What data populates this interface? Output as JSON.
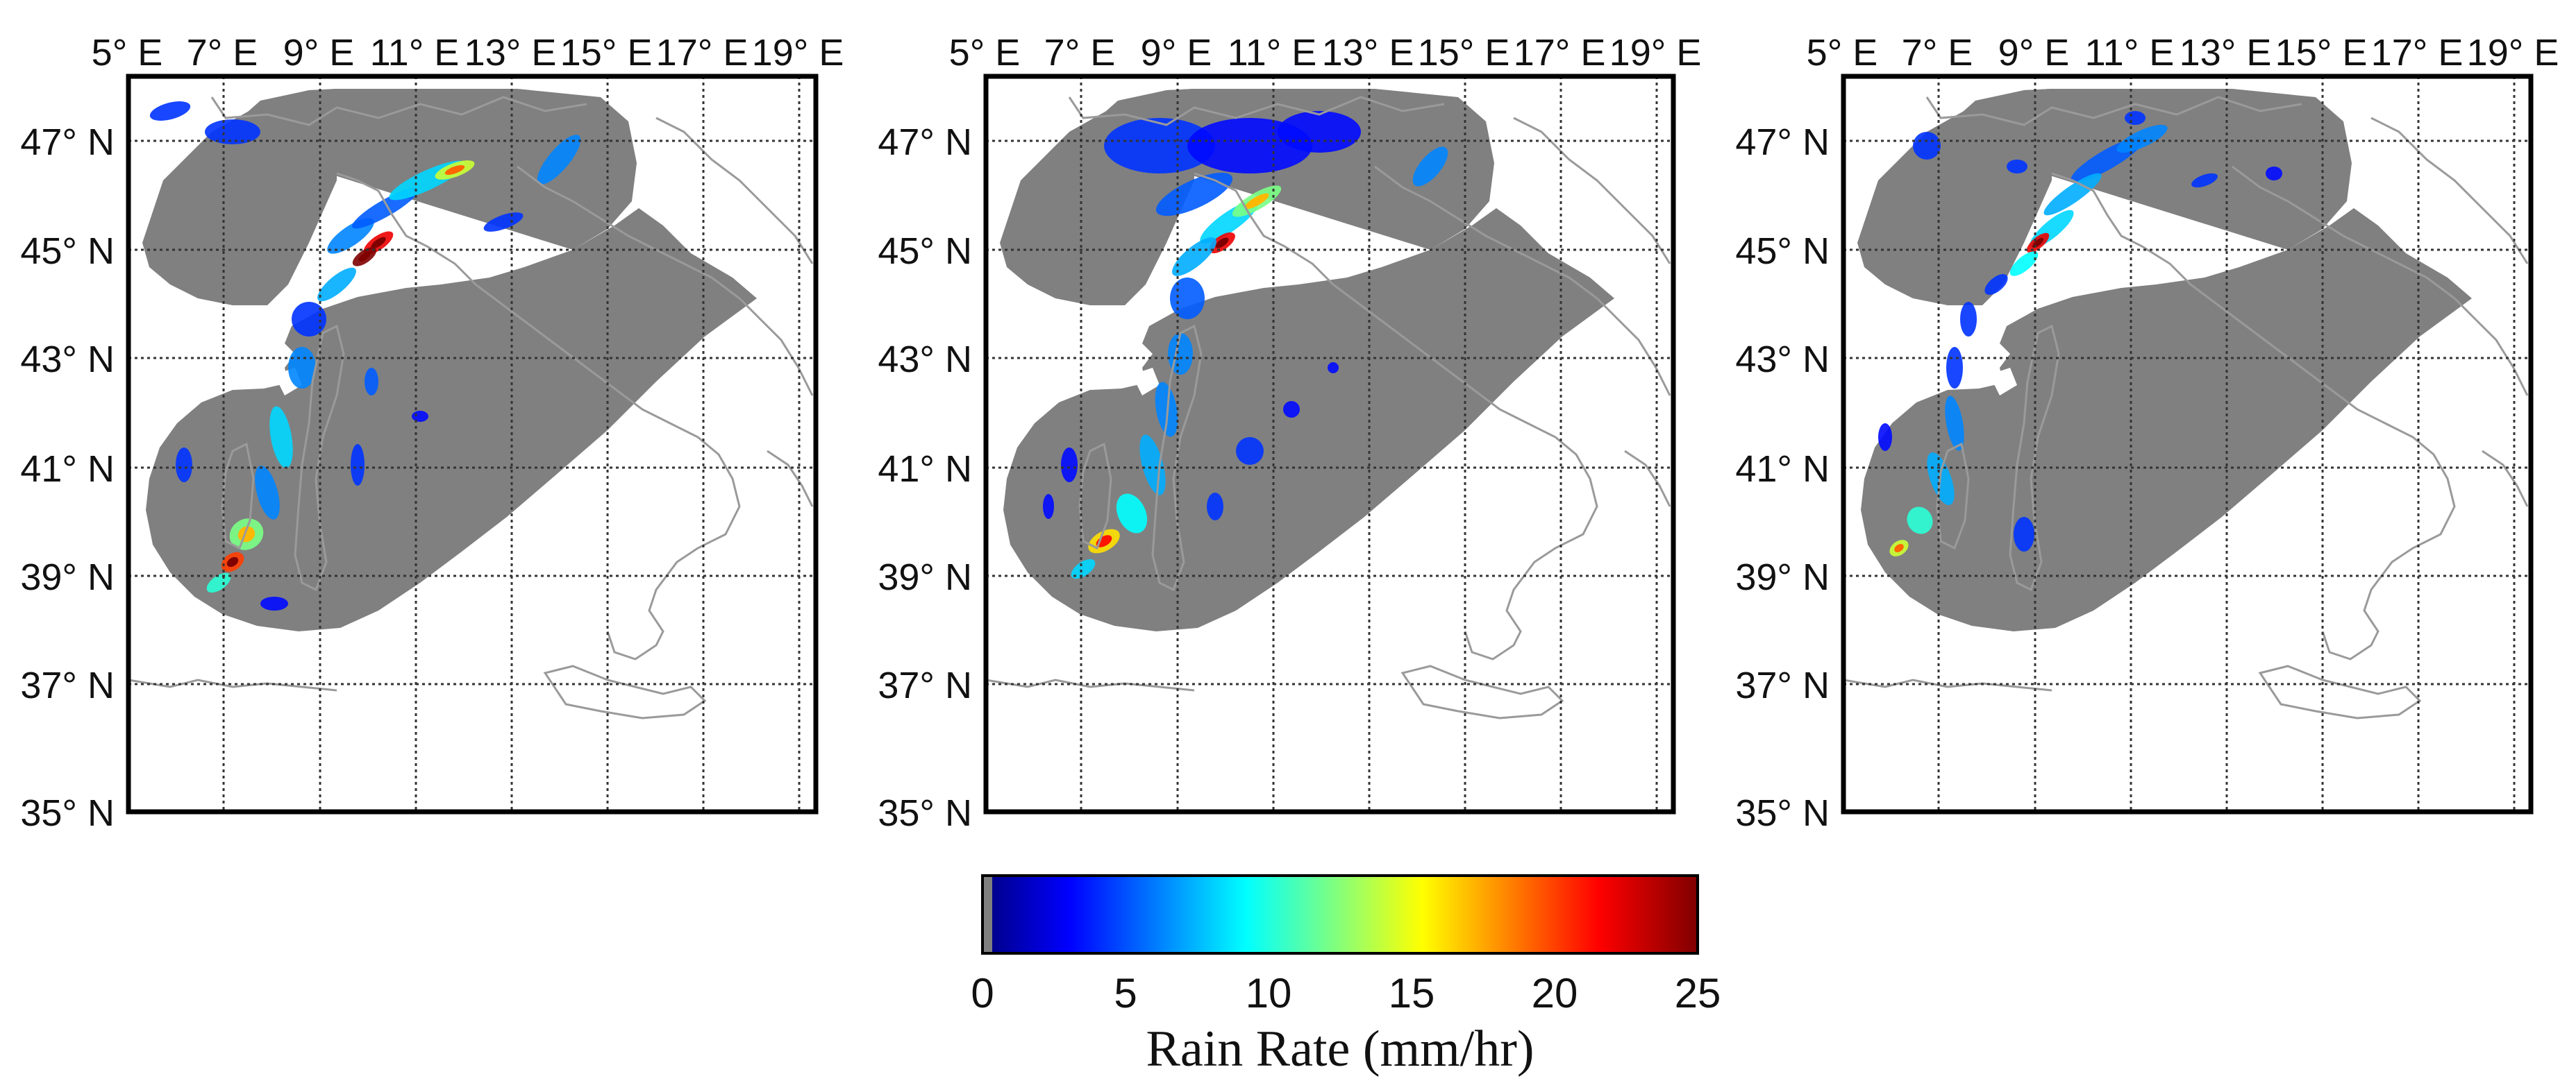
{
  "figure": {
    "panels": [
      {
        "id": "panel-1"
      },
      {
        "id": "panel-2"
      },
      {
        "id": "panel-3"
      }
    ],
    "lon_ticks": [
      "5° E",
      "7° E",
      "9° E",
      "11° E",
      "13° E",
      "15° E",
      "17° E",
      "19° E"
    ],
    "lat_ticks": [
      "47° N",
      "45° N",
      "43° N",
      "41° N",
      "39° N",
      "37° N",
      "35° N"
    ],
    "lon_values": [
      5,
      7,
      9,
      11,
      13,
      15,
      17,
      19
    ],
    "lat_values": [
      47,
      45,
      43,
      41,
      39,
      37,
      35
    ],
    "map_extent": {
      "lon": [
        5,
        20
      ],
      "lat": [
        35,
        48
      ]
    },
    "colors": {
      "frame": "#000000",
      "coverage": "#808080",
      "coast": "#9a9a9a",
      "grid": "#333333"
    }
  },
  "colorbar": {
    "title": "Rain Rate (mm/hr)",
    "ticks": [
      "0",
      "5",
      "10",
      "15",
      "20",
      "25"
    ],
    "tick_values": [
      0,
      5,
      10,
      15,
      20,
      25
    ],
    "range": [
      0,
      25
    ],
    "colormap": "jet",
    "zero_color": "#808080"
  }
}
